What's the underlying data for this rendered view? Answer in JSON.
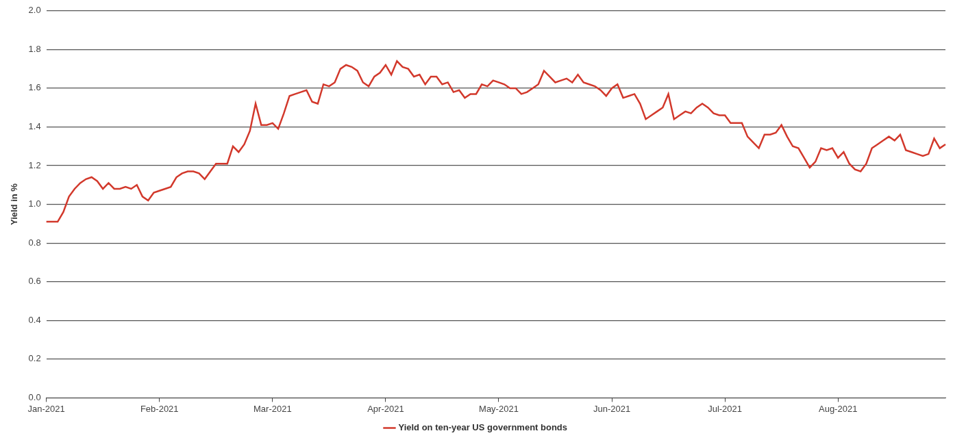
{
  "chart_data": {
    "type": "line",
    "y_label": "Yield in %",
    "categories": [
      "Jan-2021",
      null,
      null,
      null,
      null,
      null,
      null,
      null,
      null,
      null,
      null,
      null,
      null,
      null,
      null,
      null,
      null,
      null,
      null,
      null,
      "Feb-2021",
      null,
      null,
      null,
      null,
      null,
      null,
      null,
      null,
      null,
      null,
      null,
      null,
      null,
      null,
      null,
      null,
      null,
      null,
      null,
      "Mar-2021",
      null,
      null,
      null,
      null,
      null,
      null,
      null,
      null,
      null,
      null,
      null,
      null,
      null,
      null,
      null,
      null,
      null,
      null,
      null,
      "Apr-2021",
      null,
      null,
      null,
      null,
      null,
      null,
      null,
      null,
      null,
      null,
      null,
      null,
      null,
      null,
      null,
      null,
      null,
      null,
      null,
      "May-2021",
      null,
      null,
      null,
      null,
      null,
      null,
      null,
      null,
      null,
      null,
      null,
      null,
      null,
      null,
      null,
      null,
      null,
      null,
      null,
      "Jun-2021",
      null,
      null,
      null,
      null,
      null,
      null,
      null,
      null,
      null,
      null,
      null,
      null,
      null,
      null,
      null,
      null,
      null,
      null,
      null,
      "Jul-2021",
      null,
      null,
      null,
      null,
      null,
      null,
      null,
      null,
      null,
      null,
      null,
      null,
      null,
      null,
      null,
      null,
      null,
      null,
      null,
      "Aug-2021",
      null,
      null,
      null,
      null,
      null,
      null,
      null,
      null,
      null,
      null,
      null,
      null,
      null,
      null,
      null,
      null,
      null,
      null,
      null
    ],
    "series": [
      {
        "name": "Yield on ten-year US government bonds",
        "color": "#d2382b",
        "values": [
          0.91,
          0.91,
          0.91,
          0.96,
          1.04,
          1.08,
          1.11,
          1.13,
          1.14,
          1.12,
          1.08,
          1.11,
          1.08,
          1.08,
          1.09,
          1.08,
          1.1,
          1.04,
          1.02,
          1.06,
          1.07,
          1.08,
          1.09,
          1.14,
          1.16,
          1.17,
          1.17,
          1.16,
          1.13,
          1.17,
          1.21,
          1.21,
          1.21,
          1.3,
          1.27,
          1.31,
          1.38,
          1.52,
          1.41,
          1.41,
          1.42,
          1.39,
          1.47,
          1.56,
          1.57,
          1.58,
          1.59,
          1.53,
          1.52,
          1.62,
          1.61,
          1.63,
          1.7,
          1.72,
          1.71,
          1.69,
          1.63,
          1.61,
          1.66,
          1.68,
          1.72,
          1.67,
          1.74,
          1.71,
          1.7,
          1.66,
          1.67,
          1.62,
          1.66,
          1.66,
          1.62,
          1.63,
          1.58,
          1.59,
          1.55,
          1.57,
          1.57,
          1.62,
          1.61,
          1.64,
          1.63,
          1.62,
          1.6,
          1.6,
          1.57,
          1.58,
          1.6,
          1.62,
          1.69,
          1.66,
          1.63,
          1.64,
          1.65,
          1.63,
          1.67,
          1.63,
          1.62,
          1.61,
          1.59,
          1.56,
          1.6,
          1.62,
          1.55,
          1.56,
          1.57,
          1.52,
          1.44,
          1.46,
          1.48,
          1.5,
          1.57,
          1.44,
          1.46,
          1.48,
          1.47,
          1.5,
          1.52,
          1.5,
          1.47,
          1.46,
          1.46,
          1.42,
          1.42,
          1.42,
          1.35,
          1.32,
          1.29,
          1.36,
          1.36,
          1.37,
          1.41,
          1.35,
          1.3,
          1.29,
          1.24,
          1.19,
          1.22,
          1.29,
          1.28,
          1.29,
          1.24,
          1.27,
          1.21,
          1.18,
          1.17,
          1.21,
          1.29,
          1.31,
          1.33,
          1.35,
          1.33,
          1.36,
          1.28,
          1.27,
          1.26,
          1.25,
          1.26,
          1.34,
          1.29,
          1.31
        ]
      }
    ],
    "ylim": [
      0,
      2
    ],
    "yticks": [
      {
        "value": 0,
        "label": "0.0"
      },
      0.2,
      0.4,
      0.6,
      0.8,
      {
        "value": 1,
        "label": "1.0"
      },
      1.2,
      1.4,
      1.6,
      1.8,
      {
        "value": 2,
        "label": "2.0"
      }
    ],
    "grid": true,
    "legend": "bottom"
  }
}
